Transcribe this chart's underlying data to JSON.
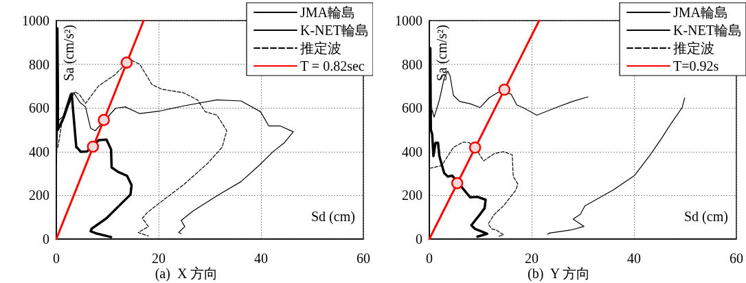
{
  "chart_data": [
    {
      "type": "line",
      "title": "(a)  X 方向",
      "xlabel": "Sd (cm)",
      "ylabel": "Sa (cm/s²)",
      "xlim": [
        0,
        60
      ],
      "ylim": [
        0,
        1000
      ],
      "xticks": [
        0,
        20,
        40,
        60
      ],
      "yticks": [
        0,
        200,
        400,
        600,
        800,
        1000
      ],
      "grid": true,
      "legend": "top right",
      "series": [
        {
          "name": "JMA輪島",
          "color": "#000000",
          "line_style": "solid",
          "x": [
            0,
            0.3,
            1.3,
            2.7,
            3.4,
            4.6,
            5.7,
            6.7,
            7.6,
            11.6,
            13.5,
            16.3,
            20,
            25,
            31.4,
            36.1,
            39.9,
            41.5,
            43.7,
            46.3,
            44.6,
            42.3,
            39.7,
            36.1,
            31.4,
            26.7,
            24.4,
            25.1,
            23.9,
            24.4
          ],
          "values": [
            345,
            540,
            561,
            664,
            670,
            626,
            605,
            507,
            496,
            599,
            605,
            574,
            585,
            610,
            637,
            632,
            583,
            518,
            518,
            491,
            442,
            399,
            339,
            263,
            198,
            128,
            85,
            57,
            30,
            25
          ]
        },
        {
          "name": "K-NET輪島",
          "color": "#000000",
          "line_style": "solid",
          "x": [
            0.2,
            0.3,
            0.3,
            1.5,
            3,
            3.9,
            4,
            4.8,
            6,
            8.3,
            9.8,
            10.7,
            10.8,
            12.1,
            13.8,
            14.7,
            14.5,
            12.6,
            9.8,
            6.9,
            6.7,
            7.9,
            10.7
          ],
          "values": [
            965,
            700,
            500,
            560,
            665,
            420,
            420,
            399,
            401,
            453,
            455,
            410,
            328,
            307,
            290,
            247,
            204,
            160,
            95,
            47,
            36,
            25,
            9
          ]
        },
        {
          "name": "推定波",
          "color": "#000000",
          "line_style": "dashed",
          "x": [
            0.3,
            1,
            2,
            3.6,
            4.6,
            5.7,
            8.3,
            11.4,
            13.8,
            14.9,
            16.3,
            18.7,
            20.6,
            24.8,
            27.6,
            29.1,
            31.4,
            33.3,
            32.4,
            29.5,
            24.8,
            21.1,
            17.8,
            16.8,
            18,
            16,
            18
          ],
          "values": [
            420,
            520,
            590,
            675,
            659,
            621,
            702,
            751,
            808,
            816,
            800,
            707,
            686,
            670,
            637,
            583,
            567,
            496,
            420,
            345,
            247,
            182,
            122,
            95,
            57,
            30,
            14
          ]
        },
        {
          "name": "T = 0.82sec",
          "color": "#ff0000",
          "line_style": "solid",
          "x": [
            0,
            17.05
          ],
          "values": [
            0,
            1000
          ]
        },
        {
          "type": "scatter",
          "marker": "circle",
          "color": "#f2dcdb",
          "x": [
            7.16,
            9.28,
            13.75
          ],
          "values": [
            423,
            545,
            808
          ]
        }
      ]
    },
    {
      "type": "line",
      "title": "(b)  Y 方向",
      "xlabel": "Sd (cm)",
      "ylabel": "Sa (cm/s²)",
      "xlim": [
        0,
        60
      ],
      "ylim": [
        0,
        1000
      ],
      "xticks": [
        0,
        20,
        40,
        60
      ],
      "yticks": [
        0,
        200,
        400,
        600,
        800,
        1000
      ],
      "grid": true,
      "legend": "top right",
      "series": [
        {
          "name": "JMA輪島",
          "color": "#000000",
          "line_style": "solid",
          "x": [
            0.3,
            0.56,
            0.93,
            1.96,
            2.9,
            3.6,
            4.05,
            4.7,
            5.9,
            8,
            9.9,
            11.7,
            13.6,
            16,
            17.1,
            18.3,
            21,
            24.8,
            28,
            31,
            null,
            49.9,
            49.4,
            47.1,
            45.3,
            43,
            40.1,
            35.9,
            30.4,
            29.5,
            28.1,
            30.2,
            27.6,
            23.4,
            23.1
          ],
          "values": [
            560,
            591,
            558,
            636,
            736,
            769,
            747,
            658,
            630,
            619,
            602,
            647,
            674,
            663,
            613,
            602,
            567,
            602,
            630,
            651,
            null,
            646,
            602,
            524,
            458,
            380,
            291,
            224,
            152,
            113,
            91,
            58,
            41,
            27,
            22
          ]
        },
        {
          "name": "K-NET輪島",
          "color": "#000000",
          "line_style": "solid",
          "x": [
            0.19,
            0.3,
            0.56,
            0.8,
            1.2,
            1.7,
            1.96,
            2.9,
            3.6,
            4.5,
            6.6,
            8,
            9.4,
            11,
            10.8,
            9.9,
            8.2,
            8.9,
            10.1,
            11.3,
            9.4
          ],
          "values": [
            874,
            500,
            480,
            380,
            440,
            441,
            380,
            302,
            286,
            290,
            230,
            191,
            193,
            180,
            141,
            113,
            63,
            47,
            36,
            24,
            11
          ]
        },
        {
          "name": "推定波",
          "color": "#000000",
          "line_style": "dashed",
          "x": [
            0.1,
            2.4,
            4.7,
            6.6,
            7.8,
            8.94,
            10.6,
            12.7,
            14.5,
            16.2,
            16.4,
            17.3,
            16.9,
            14.5,
            12.7,
            11.5,
            12.2,
            13.1,
            14.5,
            13.6
          ],
          "values": [
            324,
            336,
            419,
            444,
            441,
            419,
            358,
            391,
            400,
            386,
            286,
            252,
            224,
            152,
            113,
            69,
            47,
            41,
            19,
            13
          ]
        },
        {
          "name": "T=0.92s",
          "color": "#ff0000",
          "line_style": "solid",
          "x": [
            0,
            21.46
          ],
          "values": [
            0,
            1000
          ]
        },
        {
          "type": "scatter",
          "marker": "circle",
          "color": "#f2dcdb",
          "x": [
            5.45,
            8.94,
            14.67
          ],
          "values": [
            256,
            419,
            684
          ]
        }
      ]
    }
  ]
}
